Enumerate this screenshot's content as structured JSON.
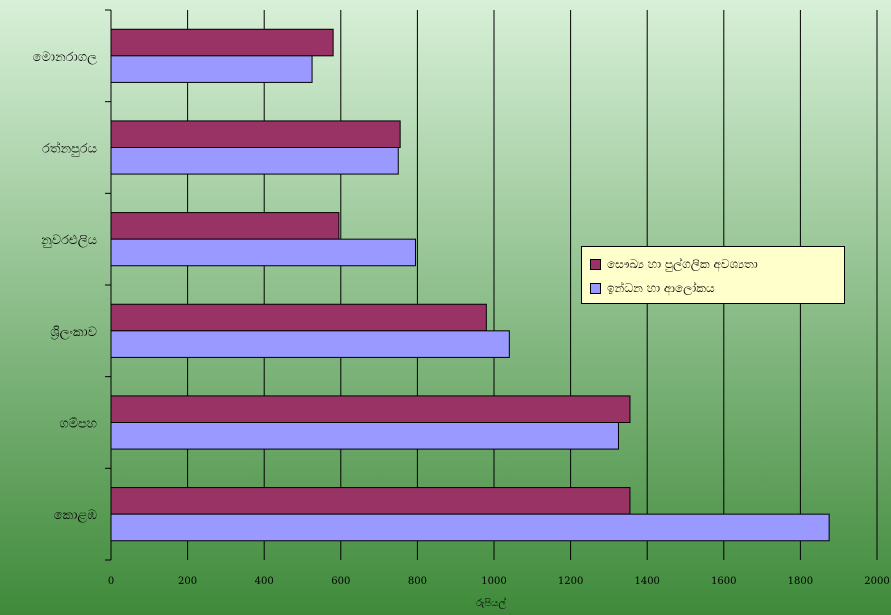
{
  "chart_data": {
    "type": "bar",
    "orientation": "horizontal",
    "title": "",
    "xlabel": "රුපියල්",
    "ylabel": "",
    "xlim": [
      0,
      2000
    ],
    "xticks": [
      0,
      200,
      400,
      600,
      800,
      1000,
      1200,
      1400,
      1600,
      1800,
      2000
    ],
    "grid": true,
    "legend_position": "right",
    "categories": [
      "මොනරාගල",
      "රත්නපුරය",
      "නුවරඑලිය",
      "ශ්‍රිලංකාව",
      "ගම්පහ",
      "කොළඹ"
    ],
    "series": [
      {
        "name": "සෞඛ්‍ය හා පුල්ගලික අවශ්‍යතා",
        "color": "#993366",
        "values": [
          580,
          755,
          595,
          980,
          1355,
          1355
        ]
      },
      {
        "name": "ඉන්ධන හා ආලෝකය",
        "color": "#9999ff",
        "values": [
          525,
          750,
          795,
          1040,
          1325,
          1875
        ]
      }
    ],
    "background_top": "#d8f0d8",
    "background_bottom": "#3f8a3a"
  }
}
